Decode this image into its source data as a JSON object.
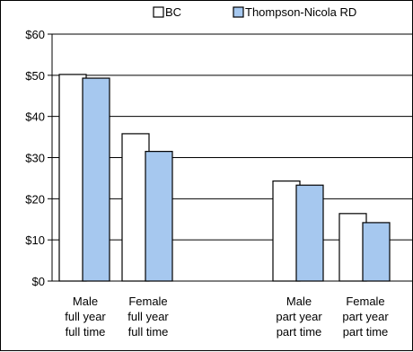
{
  "chart_data": {
    "type": "bar",
    "categories": [
      [
        "Male",
        "full year",
        "full time"
      ],
      [
        "Female",
        "full year",
        "full time"
      ],
      [
        "Male",
        "part year",
        "part time"
      ],
      [
        "Female",
        "part year",
        "part time"
      ]
    ],
    "series": [
      {
        "name": "BC",
        "color": "#ffffff",
        "values": [
          50.2,
          35.8,
          24.3,
          16.4
        ]
      },
      {
        "name": "Thompson-Nicola RD",
        "color": "#a6c8ef",
        "values": [
          49.3,
          31.5,
          23.3,
          14.2
        ]
      }
    ],
    "ylim": [
      0,
      60
    ],
    "yticks": [
      0,
      10,
      20,
      30,
      40,
      50,
      60
    ],
    "ytick_labels": [
      "$0",
      "$10",
      "$20",
      "$30",
      "$40",
      "$50",
      "$60"
    ],
    "grid": "horizontal",
    "legend": "top",
    "title": "",
    "xlabel": "",
    "ylabel": ""
  }
}
